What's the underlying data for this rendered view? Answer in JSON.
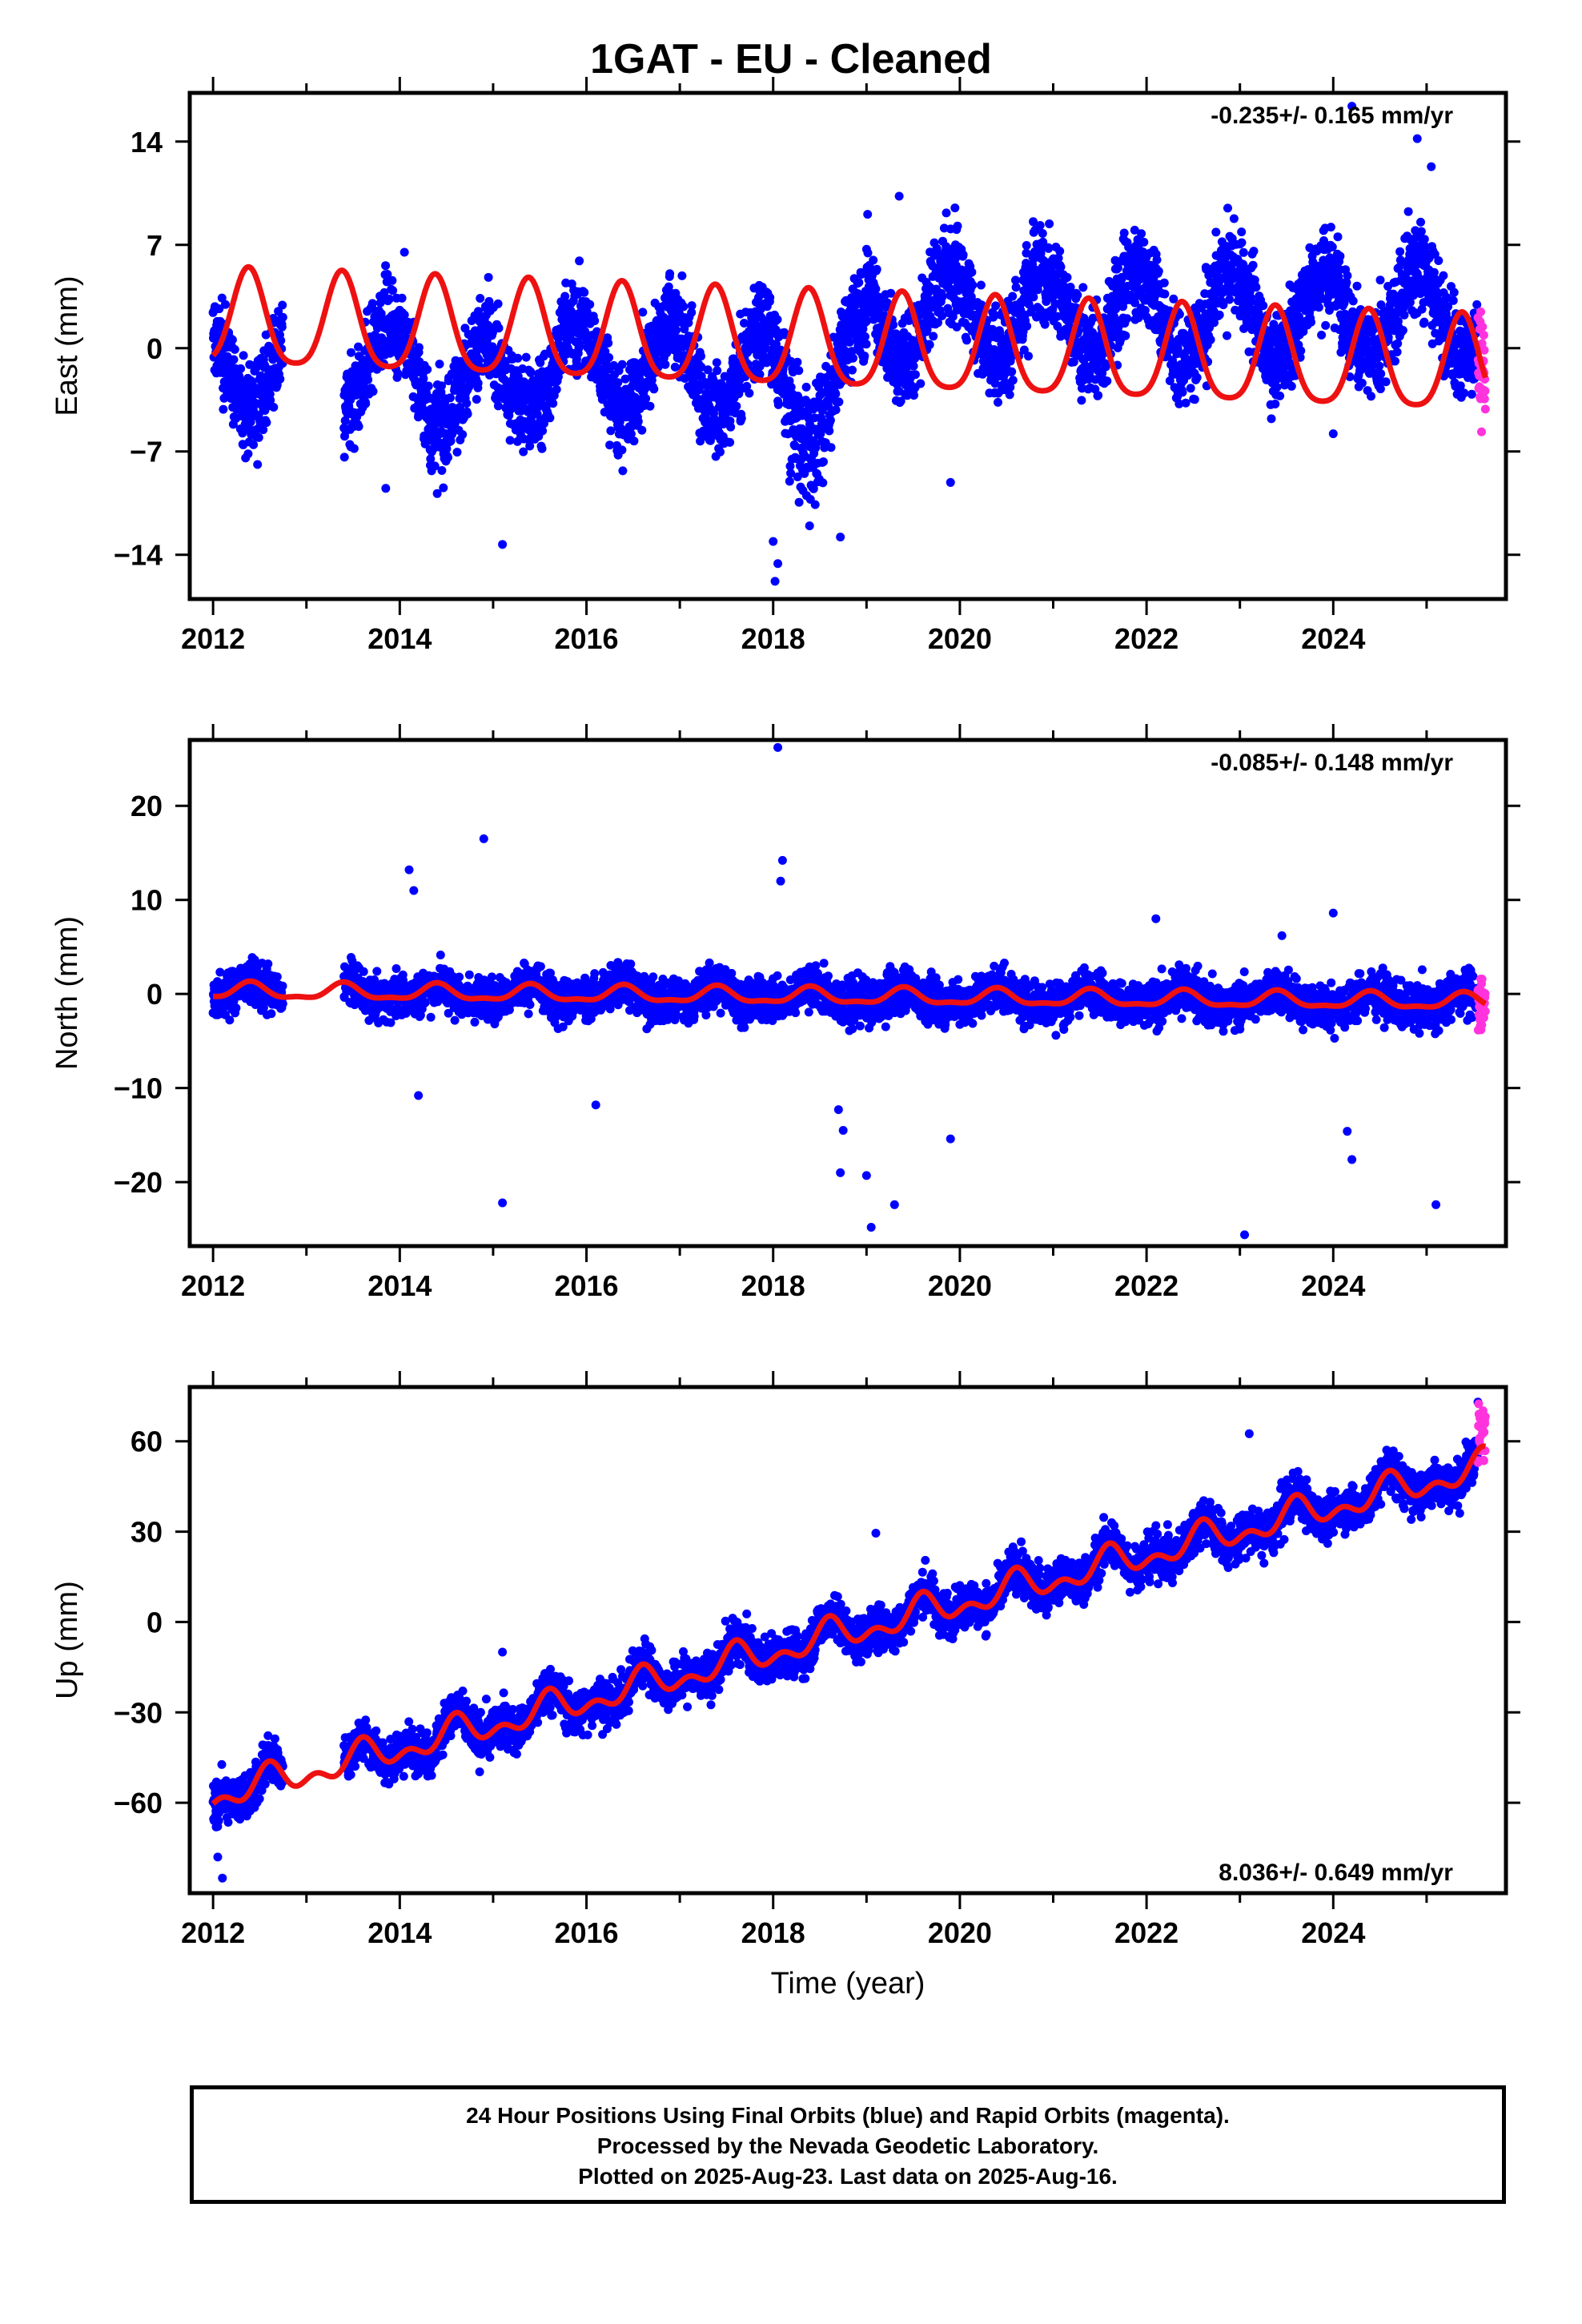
{
  "title": "1GAT  - EU - Cleaned",
  "caption": [
    "24 Hour Positions Using Final Orbits (blue) and Rapid Orbits (magenta).",
    "Processed by the Nevada Geodetic Laboratory.",
    "Plotted on 2025-Aug-23. Last data on 2025-Aug-16."
  ],
  "colors": {
    "final": "#0000ff",
    "rapid": "#ff33dd",
    "model": "#ee1111",
    "frame": "#000000"
  },
  "chart_data": [
    {
      "type": "scatter",
      "name": "east",
      "ylabel": "East (mm)",
      "xlabel": "",
      "xlim": [
        2011.75,
        2025.85
      ],
      "ylim": [
        -17,
        17.3
      ],
      "xticks": [
        2012,
        2014,
        2016,
        2018,
        2020,
        2022,
        2024
      ],
      "yticks": [
        14,
        7,
        0,
        -7,
        -14
      ],
      "ytick_labels": [
        "14",
        "7",
        "0",
        "−7",
        "−14"
      ],
      "rate_text": "-0.235+/- 0.165 mm/yr",
      "rate_position": "top-right",
      "model": {
        "offset": 1.8,
        "rate": -0.235,
        "amp": 3.2,
        "phase_peak": 0.38,
        "semi_amp": 0.6,
        "step": 0
      },
      "gap": [
        2012.75,
        2013.4
      ],
      "noise": 1.6,
      "outliers": [
        [
          2014.05,
          6.5
        ],
        [
          2013.85,
          -9.5
        ],
        [
          2015.1,
          -13.3
        ],
        [
          2018.02,
          -15.8
        ],
        [
          2018.05,
          -14.6
        ],
        [
          2018.0,
          -13.1
        ],
        [
          2018.72,
          -12.8
        ],
        [
          2019.9,
          -9.1
        ],
        [
          2024.2,
          16.4
        ],
        [
          2024.9,
          14.2
        ],
        [
          2025.05,
          12.3
        ],
        [
          2024.0,
          -5.8
        ],
        [
          2019.35,
          10.3
        ],
        [
          2014.95,
          4.8
        ]
      ],
      "dip": {
        "from": 2017.9,
        "to": 2018.8,
        "depth": -5
      }
    },
    {
      "type": "scatter",
      "name": "north",
      "ylabel": "North (mm)",
      "xlabel": "",
      "xlim": [
        2011.75,
        2025.85
      ],
      "ylim": [
        -26.8,
        27
      ],
      "xticks": [
        2012,
        2014,
        2016,
        2018,
        2020,
        2022,
        2024
      ],
      "yticks": [
        20,
        10,
        0,
        -10,
        -20
      ],
      "ytick_labels": [
        "20",
        "10",
        "0",
        "−10",
        "−20"
      ],
      "rate_text": "-0.085+/- 0.148 mm/yr",
      "rate_position": "top-right",
      "model": {
        "offset": 0.3,
        "rate": -0.085,
        "amp": 0.8,
        "phase_peak": 0.4,
        "semi_amp": 0.3,
        "step": 0
      },
      "gap": [
        2012.75,
        2013.4
      ],
      "noise": 1.4,
      "outliers": [
        [
          2014.9,
          16.5
        ],
        [
          2014.1,
          13.2
        ],
        [
          2014.15,
          11.0
        ],
        [
          2018.05,
          26.2
        ],
        [
          2018.1,
          14.2
        ],
        [
          2018.08,
          12.0
        ],
        [
          2014.2,
          -10.8
        ],
        [
          2016.1,
          -11.8
        ],
        [
          2015.1,
          -22.2
        ],
        [
          2018.72,
          -19.0
        ],
        [
          2018.75,
          -14.5
        ],
        [
          2018.7,
          -12.3
        ],
        [
          2019.05,
          -24.8
        ],
        [
          2019.3,
          -22.4
        ],
        [
          2019.0,
          -19.3
        ],
        [
          2019.9,
          -15.4
        ],
        [
          2023.05,
          -25.6
        ],
        [
          2024.15,
          -14.6
        ],
        [
          2024.2,
          -17.6
        ],
        [
          2025.1,
          -22.4
        ],
        [
          2024.0,
          8.6
        ],
        [
          2022.1,
          8.0
        ],
        [
          2023.45,
          6.2
        ]
      ],
      "dip": null
    },
    {
      "type": "scatter",
      "name": "up",
      "ylabel": "Up (mm)",
      "xlabel": "Time (year)",
      "xlim": [
        2011.75,
        2025.85
      ],
      "ylim": [
        -90,
        78
      ],
      "xticks": [
        2012,
        2014,
        2016,
        2018,
        2020,
        2022,
        2024
      ],
      "yticks": [
        60,
        30,
        0,
        -30,
        -60
      ],
      "ytick_labels": [
        "60",
        "30",
        "0",
        "−30",
        "−60"
      ],
      "rate_text": "8.036+/- 0.649 mm/yr",
      "rate_position": "bottom-right",
      "model": {
        "offset": -58,
        "rate": 8.036,
        "amp": 4.0,
        "phase_peak": 0.6,
        "semi_amp": 3.0,
        "step": 0
      },
      "gap": [
        2012.75,
        2013.4
      ],
      "noise": 4.5,
      "outliers": [
        [
          2012.1,
          -85.0
        ],
        [
          2012.05,
          -78.0
        ],
        [
          2019.1,
          29.5
        ],
        [
          2023.1,
          62.5
        ],
        [
          2015.1,
          -10.0
        ],
        [
          2025.55,
          73.0
        ]
      ],
      "dip": null
    }
  ]
}
